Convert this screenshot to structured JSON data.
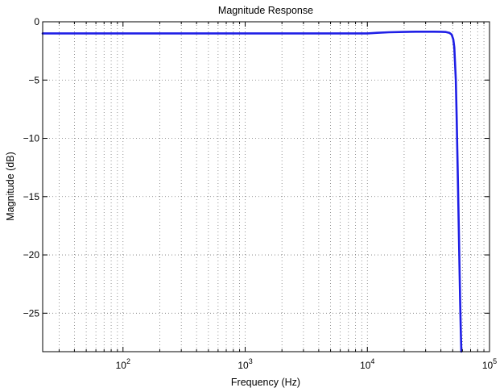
{
  "chart_data": {
    "type": "line",
    "title": "Magnitude Response",
    "xlabel": "Frequency (Hz)",
    "ylabel": "Magnitude (dB)",
    "xscale": "log",
    "xlim": [
      22,
      100000
    ],
    "ylim": [
      -28.3,
      0
    ],
    "grid": true,
    "grid_style": "dotted",
    "legend": null,
    "x_ticks": [
      {
        "value": 100,
        "base": "10",
        "exp": "2"
      },
      {
        "value": 1000,
        "base": "10",
        "exp": "3"
      },
      {
        "value": 10000,
        "base": "10",
        "exp": "4"
      },
      {
        "value": 100000,
        "base": "10",
        "exp": "5"
      }
    ],
    "y_ticks": [
      {
        "value": 0,
        "label": "0"
      },
      {
        "value": -5,
        "label": "−5"
      },
      {
        "value": -10,
        "label": "−10"
      },
      {
        "value": -15,
        "label": "−15"
      },
      {
        "value": -20,
        "label": "−20"
      },
      {
        "value": -25,
        "label": "−25"
      }
    ],
    "series": [
      {
        "color": "#1f1fe6",
        "x": [
          22,
          100,
          1000,
          5000,
          10000,
          12000,
          15000,
          20000,
          25000,
          30000,
          35000,
          40000,
          44000,
          47000,
          49000,
          50500,
          51500,
          52200,
          53000,
          53800,
          54500,
          55200,
          56000,
          56800,
          57500,
          58200,
          58800
        ],
        "y": [
          -1.0,
          -1.0,
          -1.0,
          -1.0,
          -1.0,
          -0.95,
          -0.9,
          -0.87,
          -0.85,
          -0.85,
          -0.85,
          -0.86,
          -0.88,
          -0.95,
          -1.1,
          -1.5,
          -2.2,
          -3.5,
          -5.0,
          -8.0,
          -11.0,
          -14.0,
          -17.5,
          -21.0,
          -24.0,
          -26.5,
          -28.3
        ]
      }
    ]
  }
}
